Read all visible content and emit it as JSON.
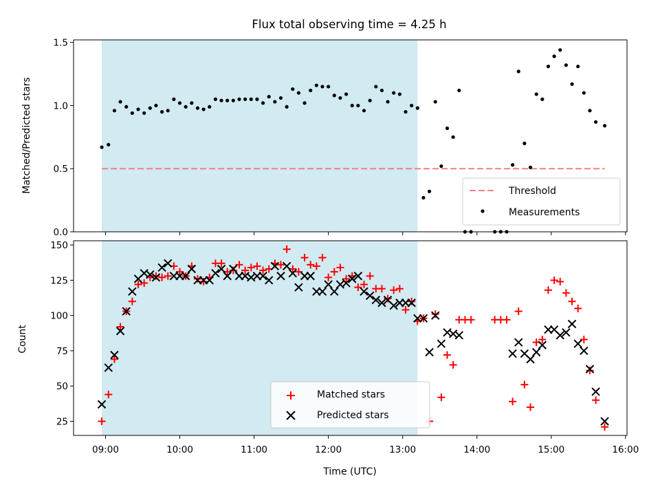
{
  "title": "Flux total observing time = 4.25 h",
  "chart_data": [
    {
      "type": "scatter",
      "ylabel": "Matched/Predicted stars",
      "xlim": [
        8.57,
        16.02
      ],
      "ylim": [
        0,
        1.52
      ],
      "x_ticks": [
        9,
        10,
        11,
        12,
        13,
        14,
        15,
        16
      ],
      "y_ticks": [
        0,
        0.5,
        1.0,
        1.5
      ],
      "y_tick_labels": [
        "0.0",
        "0.5",
        "1.0",
        "1.5"
      ],
      "highlight_span": [
        8.95,
        13.2
      ],
      "highlight_color": "#add8e6",
      "threshold": {
        "name": "Threshold",
        "y": 0.5,
        "x_range": [
          8.95,
          15.72
        ],
        "color": "#f08080",
        "style": "dashed"
      },
      "series": [
        {
          "name": "Measurements",
          "color": "#000000",
          "marker": "dot",
          "x": [
            8.95,
            9.04,
            9.12,
            9.2,
            9.28,
            9.36,
            9.44,
            9.52,
            9.6,
            9.68,
            9.76,
            9.84,
            9.92,
            10.0,
            10.08,
            10.16,
            10.24,
            10.32,
            10.4,
            10.48,
            10.56,
            10.64,
            10.72,
            10.8,
            10.88,
            10.96,
            11.04,
            11.12,
            11.2,
            11.28,
            11.36,
            11.44,
            11.52,
            11.6,
            11.68,
            11.76,
            11.84,
            11.92,
            12.0,
            12.08,
            12.16,
            12.24,
            12.32,
            12.4,
            12.48,
            12.56,
            12.64,
            12.72,
            12.8,
            12.88,
            12.96,
            13.04,
            13.12,
            13.2,
            13.28,
            13.36,
            13.44,
            13.52,
            13.6,
            13.68,
            13.76,
            13.84,
            13.92,
            14.24,
            14.32,
            14.4,
            14.48,
            14.56,
            14.64,
            14.72,
            14.8,
            14.88,
            14.96,
            15.04,
            15.12,
            15.2,
            15.28,
            15.36,
            15.44,
            15.52,
            15.6,
            15.72
          ],
          "y": [
            0.67,
            0.69,
            0.96,
            1.03,
            0.99,
            0.94,
            0.97,
            0.94,
            0.98,
            1.0,
            0.95,
            0.96,
            1.05,
            1.02,
            0.99,
            1.02,
            0.98,
            0.97,
            0.99,
            1.05,
            1.04,
            1.04,
            1.04,
            1.05,
            1.05,
            1.05,
            1.05,
            1.02,
            1.07,
            1.03,
            1.06,
            0.99,
            1.13,
            1.1,
            1.02,
            1.12,
            1.16,
            1.15,
            1.15,
            1.08,
            1.06,
            1.09,
            1.0,
            1.0,
            0.96,
            1.04,
            1.15,
            1.12,
            1.03,
            1.1,
            1.09,
            0.95,
            1.0,
            0.98,
            0.27,
            0.32,
            1.03,
            0.52,
            0.82,
            0.75,
            1.12,
            0.0,
            0.0,
            0.0,
            0.0,
            0.0,
            0.53,
            1.27,
            0.7,
            0.51,
            1.09,
            1.05,
            1.31,
            1.39,
            1.44,
            1.32,
            1.17,
            1.31,
            1.1,
            0.96,
            0.87,
            0.84
          ]
        }
      ],
      "legend": {
        "position": "bottom-right",
        "entries": [
          "Threshold",
          "Measurements"
        ]
      }
    },
    {
      "type": "scatter",
      "xlabel": "Time (UTC)",
      "ylabel": "Count",
      "xlim": [
        8.57,
        16.02
      ],
      "ylim": [
        15,
        153
      ],
      "x_ticks": [
        9,
        10,
        11,
        12,
        13,
        14,
        15,
        16
      ],
      "x_tick_labels": [
        "09:00",
        "10:00",
        "11:00",
        "12:00",
        "13:00",
        "14:00",
        "15:00",
        "16:00"
      ],
      "y_ticks": [
        25,
        50,
        75,
        100,
        125,
        150
      ],
      "y_tick_labels": [
        "25",
        "50",
        "75",
        "100",
        "125",
        "150"
      ],
      "highlight_span": [
        8.95,
        13.2
      ],
      "highlight_color": "#add8e6",
      "series": [
        {
          "name": "Matched stars",
          "color": "#ff0000",
          "marker": "plus",
          "x": [
            8.95,
            9.04,
            9.12,
            9.2,
            9.28,
            9.36,
            9.44,
            9.52,
            9.6,
            9.68,
            9.76,
            9.84,
            9.92,
            10.0,
            10.08,
            10.16,
            10.24,
            10.32,
            10.4,
            10.48,
            10.56,
            10.64,
            10.72,
            10.8,
            10.88,
            10.96,
            11.04,
            11.12,
            11.2,
            11.28,
            11.36,
            11.44,
            11.52,
            11.6,
            11.68,
            11.76,
            11.84,
            11.92,
            12.0,
            12.08,
            12.16,
            12.24,
            12.32,
            12.4,
            12.48,
            12.56,
            12.64,
            12.72,
            12.8,
            12.88,
            12.96,
            13.04,
            13.12,
            13.2,
            13.28,
            13.36,
            13.44,
            13.52,
            13.6,
            13.68,
            13.76,
            13.84,
            13.92,
            14.24,
            14.32,
            14.4,
            14.48,
            14.56,
            14.64,
            14.72,
            14.8,
            14.88,
            14.96,
            15.04,
            15.12,
            15.2,
            15.28,
            15.36,
            15.44,
            15.52,
            15.6,
            15.72
          ],
          "y": [
            25,
            44,
            69,
            92,
            103,
            110,
            122,
            123,
            127,
            128,
            127,
            128,
            135,
            131,
            128,
            135,
            126,
            124,
            127,
            137,
            137,
            131,
            132,
            136,
            132,
            134,
            135,
            132,
            133,
            137,
            136,
            147,
            133,
            131,
            141,
            136,
            135,
            141,
            127,
            131,
            134,
            126,
            128,
            120,
            122,
            128,
            119,
            119,
            112,
            118,
            119,
            104,
            110,
            96,
            98,
            25,
            101,
            42,
            72,
            65,
            97,
            97,
            97,
            97,
            97,
            97,
            39,
            103,
            51,
            35,
            81,
            83,
            118,
            125,
            124,
            116,
            110,
            105,
            83,
            61,
            40,
            21
          ]
        },
        {
          "name": "Predicted stars",
          "color": "#000000",
          "marker": "x",
          "x": [
            8.95,
            9.04,
            9.12,
            9.2,
            9.28,
            9.36,
            9.44,
            9.52,
            9.6,
            9.68,
            9.76,
            9.84,
            9.92,
            10.0,
            10.08,
            10.16,
            10.24,
            10.32,
            10.4,
            10.48,
            10.56,
            10.64,
            10.72,
            10.8,
            10.88,
            10.96,
            11.04,
            11.12,
            11.2,
            11.28,
            11.36,
            11.44,
            11.52,
            11.6,
            11.68,
            11.76,
            11.84,
            11.92,
            12.0,
            12.08,
            12.16,
            12.24,
            12.32,
            12.4,
            12.48,
            12.56,
            12.64,
            12.72,
            12.8,
            12.88,
            12.96,
            13.04,
            13.12,
            13.2,
            13.28,
            13.36,
            13.44,
            13.52,
            13.6,
            13.68,
            13.76,
            14.48,
            14.56,
            14.64,
            14.72,
            14.8,
            14.88,
            14.96,
            15.04,
            15.12,
            15.2,
            15.28,
            15.36,
            15.44,
            15.52,
            15.6,
            15.72
          ],
          "y": [
            37,
            63,
            72,
            89,
            103,
            117,
            126,
            130,
            129,
            127,
            134,
            137,
            128,
            128,
            128,
            133,
            125,
            125,
            125,
            130,
            133,
            128,
            133,
            128,
            128,
            127,
            128,
            128,
            125,
            135,
            128,
            135,
            130,
            120,
            128,
            128,
            117,
            117,
            122,
            117,
            122,
            123,
            126,
            128,
            117,
            114,
            111,
            109,
            111,
            107,
            109,
            109,
            109,
            98,
            98,
            74,
            100,
            80,
            88,
            87,
            86,
            73,
            81,
            73,
            69,
            74,
            79,
            90,
            90,
            86,
            88,
            94,
            80,
            75,
            62,
            46,
            25
          ]
        }
      ],
      "legend": {
        "position": "bottom-center",
        "entries": [
          "Matched stars",
          "Predicted stars"
        ]
      }
    }
  ]
}
